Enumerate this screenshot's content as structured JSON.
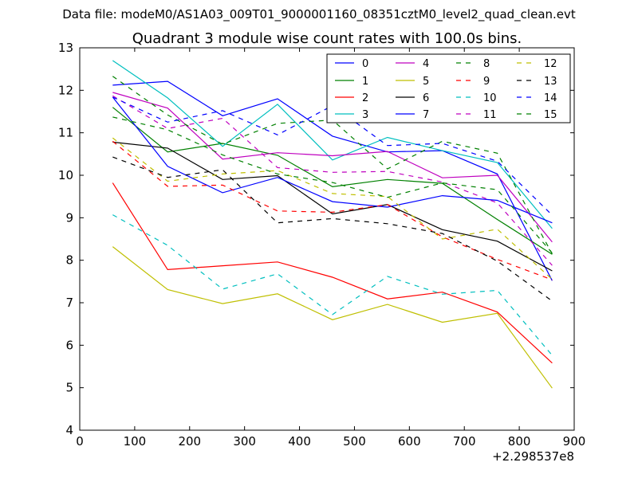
{
  "chart_data": {
    "type": "line",
    "suptitle": "Data file: modeM0/AS1A03_009T01_9000001160_08351cztM0_level2_quad_clean.evt",
    "title": "Quadrant 3 module wise count rates with 100.0s bins.",
    "xlabel": "",
    "ylabel": "",
    "xlim": [
      0,
      900
    ],
    "ylim": [
      4,
      13
    ],
    "x_ticks": [
      0,
      100,
      200,
      300,
      400,
      500,
      600,
      700,
      800,
      900
    ],
    "y_ticks": [
      4,
      5,
      6,
      7,
      8,
      9,
      10,
      11,
      12,
      13
    ],
    "x_offset_label": "+2.298537e8",
    "grid": false,
    "legend_position": "top-right",
    "x": [
      60,
      160,
      260,
      360,
      460,
      560,
      660,
      760,
      860
    ],
    "series": [
      {
        "name": "0",
        "color": "#0000ff",
        "dash": "solid",
        "values": [
          12.12,
          12.21,
          11.4,
          11.8,
          10.92,
          10.55,
          10.58,
          10.03,
          7.52
        ]
      },
      {
        "name": "1",
        "color": "#008000",
        "dash": "solid",
        "values": [
          11.6,
          10.55,
          10.75,
          10.47,
          9.73,
          9.9,
          9.81,
          8.96,
          8.14
        ]
      },
      {
        "name": "2",
        "color": "#ff0000",
        "dash": "solid",
        "values": [
          9.82,
          7.78,
          7.87,
          7.96,
          7.6,
          7.09,
          7.25,
          6.78,
          5.58
        ]
      },
      {
        "name": "3",
        "color": "#00bfbf",
        "dash": "solid",
        "values": [
          12.7,
          11.82,
          10.68,
          11.67,
          10.36,
          10.89,
          10.58,
          10.3,
          8.75
        ]
      },
      {
        "name": "4",
        "color": "#bf00bf",
        "dash": "solid",
        "values": [
          11.95,
          11.58,
          10.38,
          10.53,
          10.46,
          10.56,
          9.94,
          10.0,
          8.43
        ]
      },
      {
        "name": "5",
        "color": "#bfbf00",
        "dash": "solid",
        "values": [
          8.32,
          7.31,
          6.98,
          7.21,
          6.6,
          6.96,
          6.54,
          6.75,
          4.99
        ]
      },
      {
        "name": "6",
        "color": "#000000",
        "dash": "solid",
        "values": [
          10.78,
          10.64,
          9.9,
          9.99,
          9.09,
          9.31,
          8.72,
          8.45,
          7.75
        ]
      },
      {
        "name": "7",
        "color": "#0000ff",
        "dash": "solid",
        "values": [
          11.84,
          10.21,
          9.59,
          9.95,
          9.38,
          9.25,
          9.52,
          9.41,
          8.88
        ]
      },
      {
        "name": "8",
        "color": "#008000",
        "dash": "dashed",
        "values": [
          12.33,
          11.42,
          10.73,
          11.22,
          11.3,
          10.15,
          10.8,
          10.52,
          8.15
        ]
      },
      {
        "name": "9",
        "color": "#ff0000",
        "dash": "dashed",
        "values": [
          10.8,
          9.74,
          9.77,
          9.16,
          9.13,
          9.31,
          8.55,
          8.02,
          7.54
        ]
      },
      {
        "name": "10",
        "color": "#00bfbf",
        "dash": "dashed",
        "values": [
          9.07,
          8.35,
          7.32,
          7.68,
          6.72,
          7.62,
          7.2,
          7.29,
          5.76
        ]
      },
      {
        "name": "11",
        "color": "#bf00bf",
        "dash": "dashed",
        "values": [
          11.87,
          11.1,
          11.34,
          10.18,
          10.07,
          10.09,
          9.84,
          9.35,
          7.88
        ]
      },
      {
        "name": "12",
        "color": "#bfbf00",
        "dash": "dashed",
        "values": [
          10.88,
          9.86,
          10.03,
          10.11,
          9.57,
          9.5,
          8.5,
          8.73,
          7.55
        ]
      },
      {
        "name": "13",
        "color": "#000000",
        "dash": "dashed",
        "values": [
          10.43,
          9.95,
          10.13,
          8.88,
          8.98,
          8.86,
          8.63,
          7.98,
          7.04
        ]
      },
      {
        "name": "14",
        "color": "#0000ff",
        "dash": "dashed",
        "values": [
          11.84,
          11.25,
          11.52,
          10.95,
          11.64,
          10.7,
          10.75,
          10.33,
          9.06
        ]
      },
      {
        "name": "15",
        "color": "#008000",
        "dash": "dashed",
        "values": [
          11.37,
          11.07,
          10.48,
          10.03,
          9.83,
          9.48,
          9.82,
          9.66,
          8.17
        ]
      }
    ]
  }
}
